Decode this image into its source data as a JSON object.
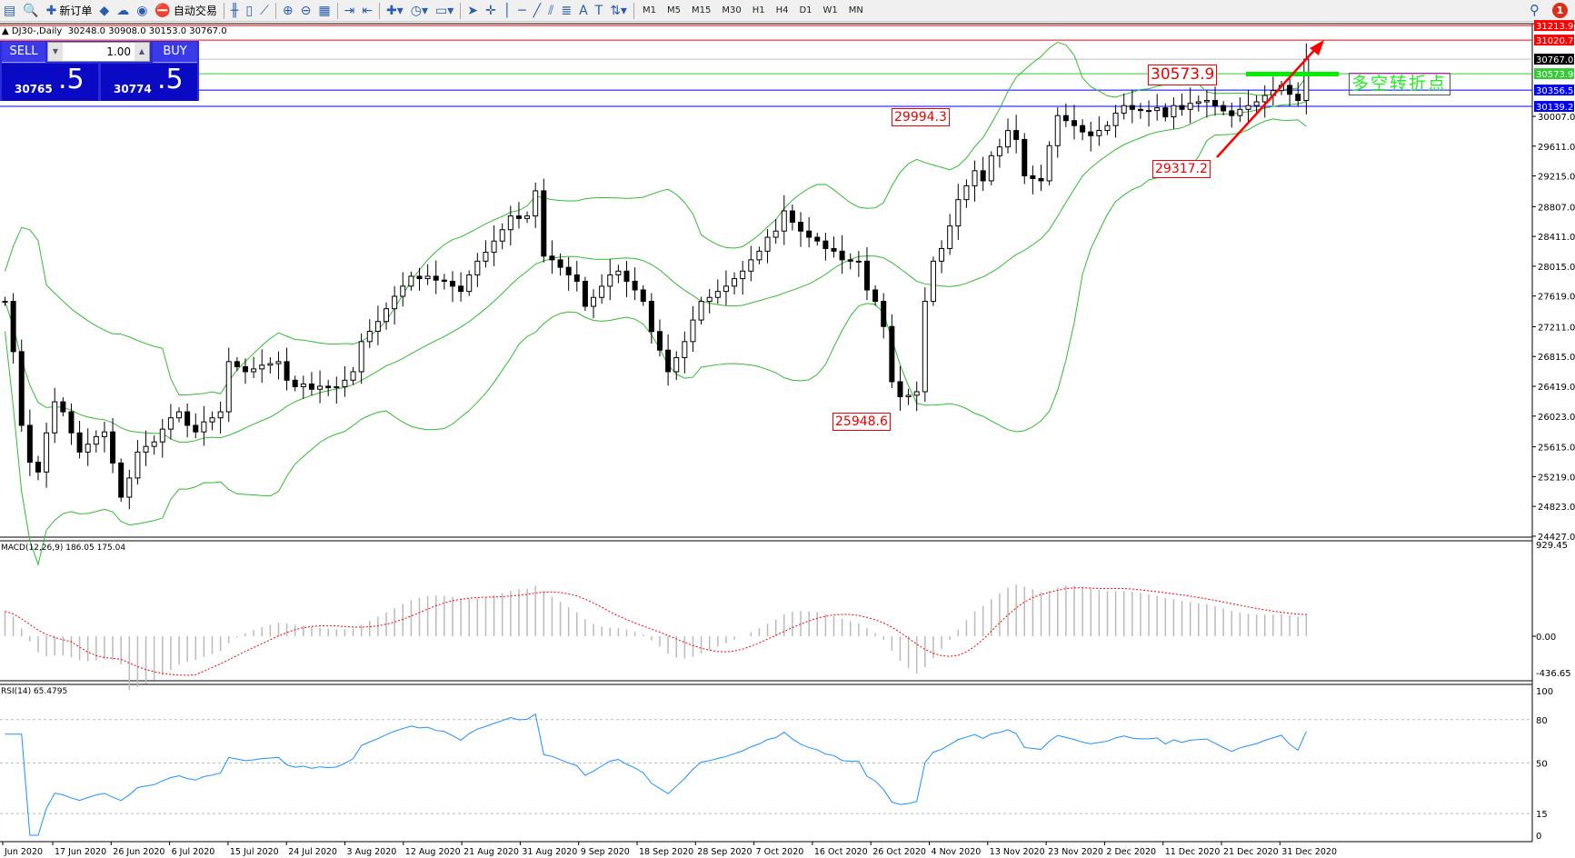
{
  "toolbar": {
    "items": [
      {
        "icon": "new-chart-icon",
        "glyph": "▤"
      },
      {
        "icon": "zoom-chart-icon",
        "glyph": "🔍"
      },
      {
        "icon": "new-order-icon",
        "glyph": "✚",
        "label": "新订单"
      },
      {
        "icon": "metaeditor-icon",
        "glyph": "◆"
      },
      {
        "icon": "navigator-icon",
        "glyph": "☁"
      },
      {
        "icon": "signals-icon",
        "glyph": "◉"
      },
      {
        "icon": "auto-trading-icon",
        "glyph": "⛔",
        "label": "自动交易"
      }
    ],
    "tools": [
      {
        "icon": "bar-chart-icon",
        "glyph": "╫"
      },
      {
        "icon": "candlestick-icon",
        "glyph": "▯"
      },
      {
        "icon": "line-chart-icon",
        "glyph": "⟋"
      },
      {
        "icon": "zoom-in-icon",
        "glyph": "⊕"
      },
      {
        "icon": "zoom-out-icon",
        "glyph": "⊖"
      },
      {
        "icon": "tile-windows-icon",
        "glyph": "▦"
      },
      {
        "icon": "auto-scroll-icon",
        "glyph": "⇥"
      },
      {
        "icon": "chart-shift-icon",
        "glyph": "⇤"
      },
      {
        "icon": "indicators-icon",
        "glyph": "✚▾"
      },
      {
        "icon": "periods-icon",
        "glyph": "◷▾"
      },
      {
        "icon": "templates-icon",
        "glyph": "▭▾"
      },
      {
        "icon": "cursor-icon",
        "glyph": "➤"
      },
      {
        "icon": "crosshair-icon",
        "glyph": "✛"
      },
      {
        "icon": "vertical-line-icon",
        "glyph": "│"
      },
      {
        "icon": "horizontal-line-icon",
        "glyph": "─"
      },
      {
        "icon": "trendline-icon",
        "glyph": "╱"
      },
      {
        "icon": "equidistant-channel-icon",
        "glyph": "⫽"
      },
      {
        "icon": "fibonacci-icon",
        "glyph": "≣"
      },
      {
        "icon": "text-icon",
        "glyph": "A"
      },
      {
        "icon": "text-label-icon",
        "glyph": "T"
      },
      {
        "icon": "arrows-icon",
        "glyph": "⇅▾"
      }
    ],
    "timeframes": [
      "M1",
      "M5",
      "M15",
      "M30",
      "H1",
      "H4",
      "D1",
      "W1",
      "MN"
    ],
    "notifications": "1"
  },
  "chart": {
    "title": "DJ30-,Daily  30248.0 30908.0 30153.0 30767.0",
    "trade_panel": {
      "sell": "SELL",
      "buy": "BUY",
      "lots": "1.00",
      "sell_price_small": "30765",
      "sell_price_big": ".5",
      "buy_price_small": "30774",
      "buy_price_big": ".5"
    },
    "levels": [
      {
        "label": "31213.9",
        "price": 31213.9,
        "color": "#ff0000"
      },
      {
        "label": "31020.7",
        "price": 31020.7,
        "color": "#ff0000"
      },
      {
        "label": "30767.0",
        "price": 30767.0,
        "color": "#000000",
        "line": "#c0c0c0"
      },
      {
        "label": "30573.9",
        "price": 30573.9,
        "color": "#33cc33"
      },
      {
        "label": "30356.5",
        "price": 30356.5,
        "color": "#0000ff"
      },
      {
        "label": "30139.2",
        "price": 30139.2,
        "color": "#0000ff"
      }
    ],
    "price_ticks": [
      "30007.0",
      "29611.0",
      "29215.0",
      "28807.0",
      "28411.0",
      "28015.0",
      "27619.0",
      "27211.0",
      "26815.0",
      "26419.0",
      "26023.0",
      "25615.0",
      "25219.0",
      "24823.0",
      "24427.0"
    ],
    "annotations": {
      "a1": "30573.9",
      "a2": "29994.3",
      "a3": "29317.2",
      "a4": "25948.6",
      "note": "多空转折点"
    },
    "colors": {
      "bands": "#33bb33",
      "macd_hist": "#bbbbbb",
      "signal": "#ff0000",
      "rsi": "#1e90ff",
      "arrow": "#ff0000",
      "turn_bar": "#00ee00"
    }
  },
  "macd": {
    "label": "MACD(12,26,9) 186.05 175.04",
    "ticks": [
      "929.45",
      "0.00",
      "-436.65"
    ]
  },
  "rsi": {
    "label": "RSI(14) 65.4795",
    "ticks": [
      "100",
      "80",
      "50",
      "15",
      "0"
    ]
  },
  "dates": [
    "Jun 2020",
    "17 Jun 2020",
    "26 Jun 2020",
    "6 Jul 2020",
    "15 Jul 2020",
    "24 Jul 2020",
    "3 Aug 2020",
    "12 Aug 2020",
    "21 Aug 2020",
    "31 Aug 2020",
    "9 Sep 2020",
    "18 Sep 2020",
    "28 Sep 2020",
    "7 Oct 2020",
    "16 Oct 2020",
    "26 Oct 2020",
    "4 Nov 2020",
    "13 Nov 2020",
    "23 Nov 2020",
    "2 Dec 2020",
    "11 Dec 2020",
    "21 Dec 2020",
    "31 Dec 2020"
  ],
  "chart_data": {
    "type": "candlestick",
    "symbol": "DJ30-",
    "timeframe": "Daily",
    "indicators": [
      "Bollinger Bands",
      "MACD(12,26,9)",
      "RSI(14)"
    ],
    "price_range": [
      24427,
      31213.9
    ],
    "close": [
      27548,
      26880,
      25900,
      25410,
      25280,
      25800,
      26213,
      26080,
      25800,
      25545,
      25650,
      25750,
      25813,
      25400,
      24945,
      25200,
      25545,
      25620,
      25680,
      25850,
      26000,
      26080,
      25900,
      25813,
      25946,
      26000,
      26080,
      26747,
      26680,
      26613,
      26650,
      26700,
      26720,
      26747,
      26500,
      26413,
      26450,
      26380,
      26420,
      26400,
      26413,
      26500,
      26613,
      27013,
      27150,
      27280,
      27450,
      27615,
      27750,
      27882,
      27850,
      27882,
      27830,
      27815,
      27750,
      27680,
      27900,
      28082,
      28200,
      28349,
      28500,
      28683,
      28650,
      28683,
      29017,
      28149,
      28100,
      28000,
      27900,
      27815,
      27482,
      27600,
      27749,
      27900,
      27950,
      27815,
      27700,
      27548,
      27147,
      26900,
      26613,
      26800,
      27013,
      27300,
      27548,
      27600,
      27680,
      27750,
      27850,
      27950,
      28100,
      28215,
      28400,
      28482,
      28750,
      28600,
      28482,
      28400,
      28350,
      28250,
      28215,
      28100,
      28082,
      28082,
      27700,
      27548,
      27214,
      26480,
      26280,
      26300,
      26347,
      27548,
      28082,
      28250,
      28550,
      28900,
      29084,
      29284,
      29150,
      29484,
      29600,
      29818,
      29700,
      29217,
      29180,
      29150,
      29617,
      30017,
      29950,
      29884,
      29800,
      29750,
      29820,
      29884,
      30050,
      30150,
      30100,
      30084,
      30084,
      30120,
      30000,
      30150,
      30100,
      30180,
      30200,
      30218,
      30150,
      30080,
      30017,
      30100,
      30150,
      30200,
      30285,
      30350,
      30418,
      30300,
      30218,
      30767
    ]
  }
}
